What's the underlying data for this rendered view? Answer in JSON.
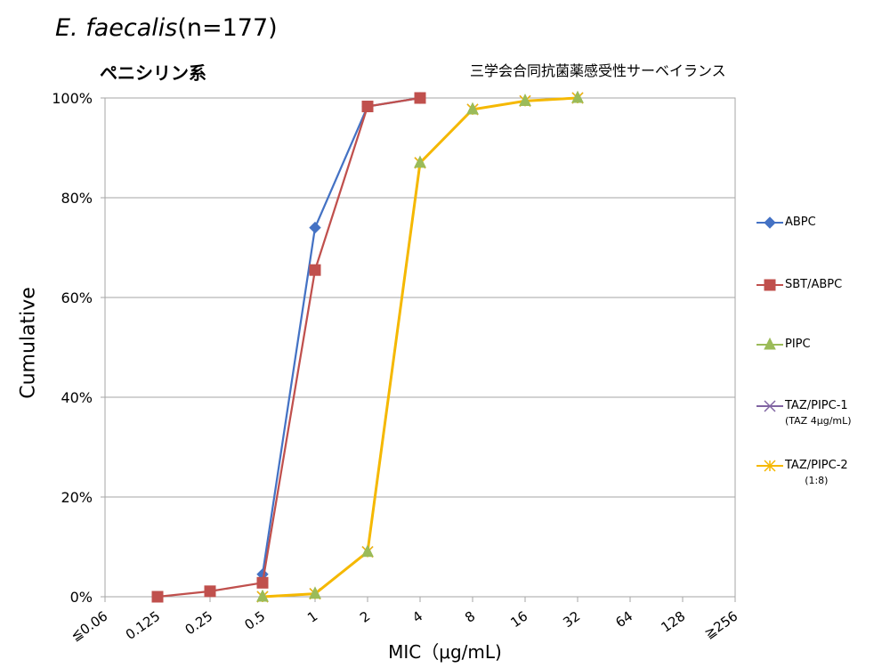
{
  "header": {
    "species": "E. faecalis",
    "sample": "(n=177)",
    "group": "ペニシリン系",
    "source": "三学会合同抗菌薬感受性サーベイランス"
  },
  "chart_data": {
    "type": "line",
    "xlabel": "MIC（μg/mL)",
    "ylabel": "Cumulative",
    "categories": [
      "≦0.06",
      "0.125",
      "0.25",
      "0.5",
      "1",
      "2",
      "4",
      "8",
      "16",
      "32",
      "64",
      "128",
      "≧256"
    ],
    "ylim": [
      0,
      100
    ],
    "yticks": [
      "0%",
      "20%",
      "40%",
      "60%",
      "80%",
      "100%"
    ],
    "grid": true,
    "legend_position": "right",
    "series": [
      {
        "name": "ABPC",
        "sub": "",
        "color": "#4472C4",
        "marker": "diamond",
        "values": [
          null,
          null,
          null,
          4.5,
          74.0,
          98.3,
          100,
          null,
          null,
          null,
          null,
          null,
          null
        ]
      },
      {
        "name": "SBT/ABPC",
        "sub": "",
        "color": "#C0504D",
        "marker": "square",
        "values": [
          null,
          0,
          1.1,
          2.8,
          65.5,
          98.3,
          100,
          null,
          null,
          null,
          null,
          null,
          null
        ]
      },
      {
        "name": "PIPC",
        "sub": "",
        "color": "#9BBB59",
        "marker": "triangle",
        "values": [
          null,
          null,
          null,
          0,
          0.6,
          9.0,
          87.0,
          97.7,
          99.4,
          100,
          null,
          null,
          null
        ]
      },
      {
        "name": "TAZ/PIPC-1",
        "sub": "(TAZ 4μg/mL)",
        "color": "#8064A2",
        "marker": "x",
        "values": [
          null,
          null,
          null,
          0,
          0.6,
          9.0,
          87.0,
          97.7,
          99.4,
          100,
          null,
          null,
          null
        ]
      },
      {
        "name": "TAZ/PIPC-2",
        "sub": "(1:8)",
        "color": "#F5B800",
        "marker": "star",
        "values": [
          null,
          null,
          null,
          0,
          0.6,
          9.0,
          87.0,
          97.7,
          99.4,
          100,
          null,
          null,
          null
        ]
      }
    ]
  }
}
